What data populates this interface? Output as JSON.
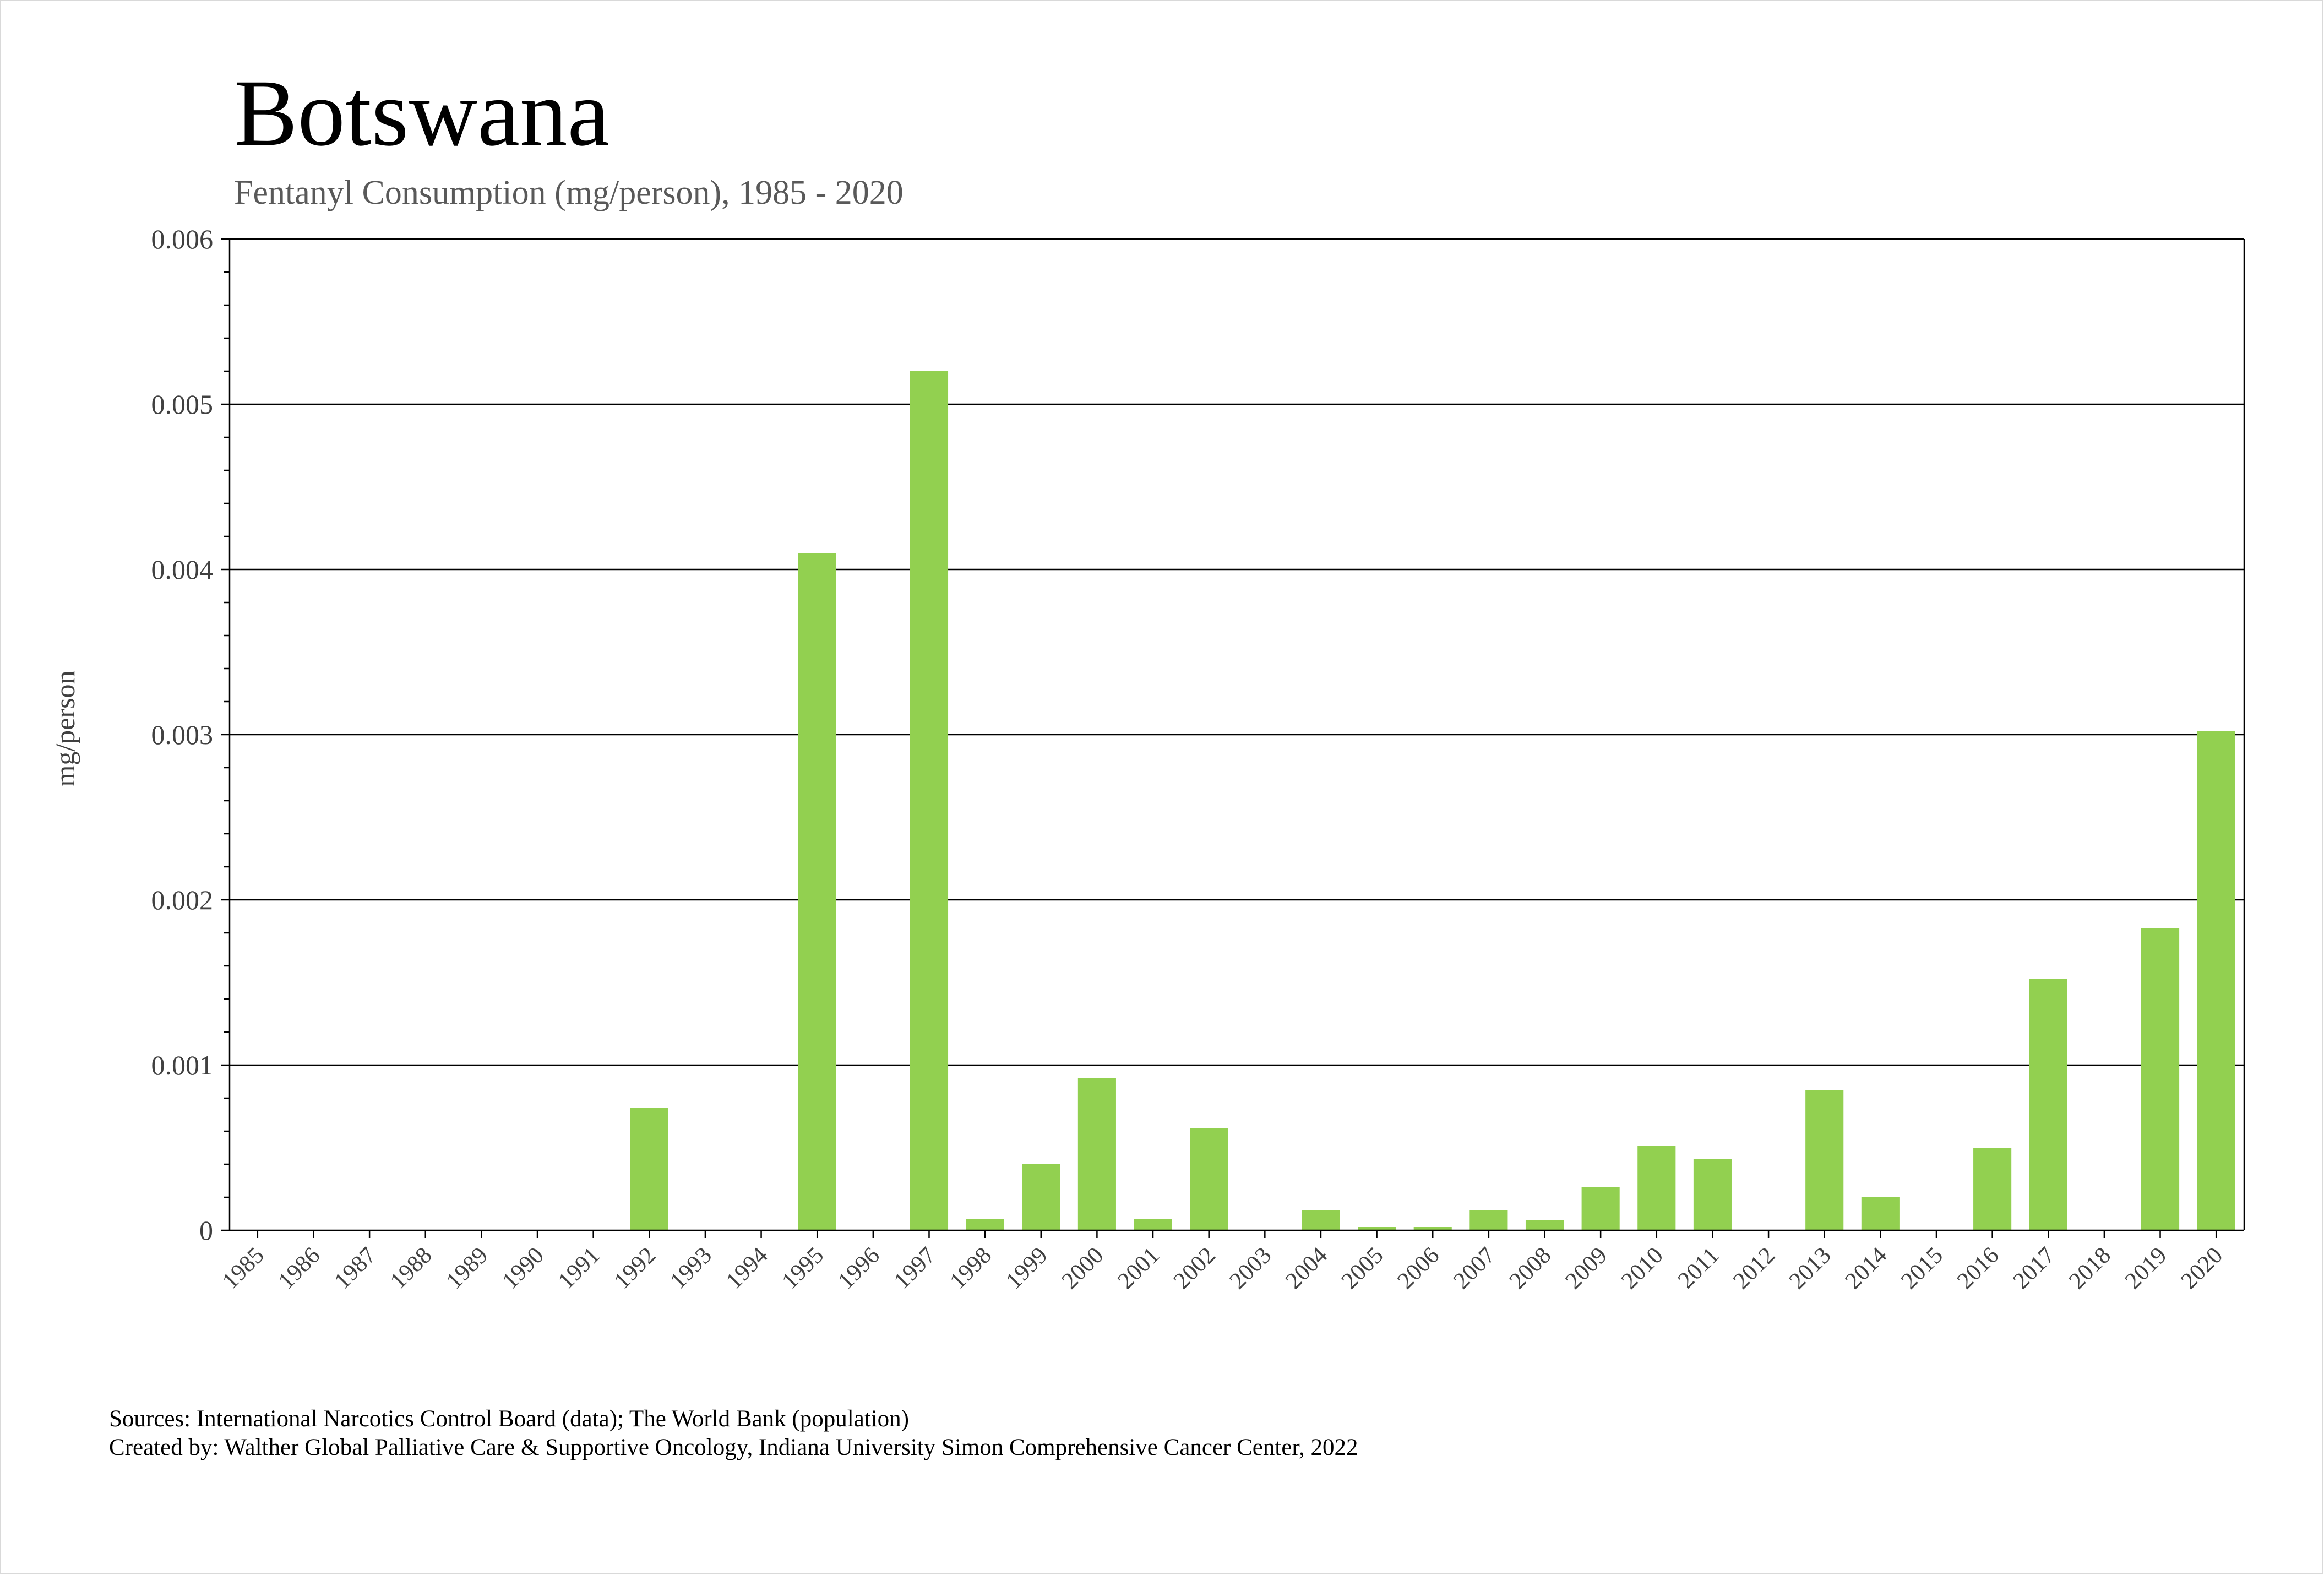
{
  "chart_data": {
    "type": "bar",
    "title": "Botswana",
    "subtitle": "Fentanyl Consumption (mg/person), 1985 - 2020",
    "xlabel": "",
    "ylabel": "mg/person",
    "ylim": [
      0,
      0.006
    ],
    "yticks": [
      "0",
      "0.001",
      "0.002",
      "0.003",
      "0.004",
      "0.005",
      "0.006"
    ],
    "grid": true,
    "bar_color": "#92d050",
    "categories": [
      "1985",
      "1986",
      "1987",
      "1988",
      "1989",
      "1990",
      "1991",
      "1992",
      "1993",
      "1994",
      "1995",
      "1996",
      "1997",
      "1998",
      "1999",
      "2000",
      "2001",
      "2002",
      "2003",
      "2004",
      "2005",
      "2006",
      "2007",
      "2008",
      "2009",
      "2010",
      "2011",
      "2012",
      "2013",
      "2014",
      "2015",
      "2016",
      "2017",
      "2018",
      "2019",
      "2020"
    ],
    "values": [
      0,
      0,
      0,
      0,
      0,
      0,
      0,
      0.00074,
      0,
      0,
      0.0041,
      0,
      0.0052,
      7e-05,
      0.0004,
      0.00092,
      7e-05,
      0.00062,
      0,
      0.00012,
      2e-05,
      2e-05,
      0.00012,
      6e-05,
      0.00026,
      0.00051,
      0.00043,
      0,
      0.00085,
      0.0002,
      0,
      0.0005,
      0.00152,
      0,
      0.00183,
      0.00302
    ]
  },
  "footer": {
    "sources": "Sources: International Narcotics Control Board (data); The World Bank (population)",
    "created_by": "Created by: Walther Global Palliative Care & Supportive Oncology, Indiana University Simon Comprehensive Cancer Center, 2022"
  }
}
